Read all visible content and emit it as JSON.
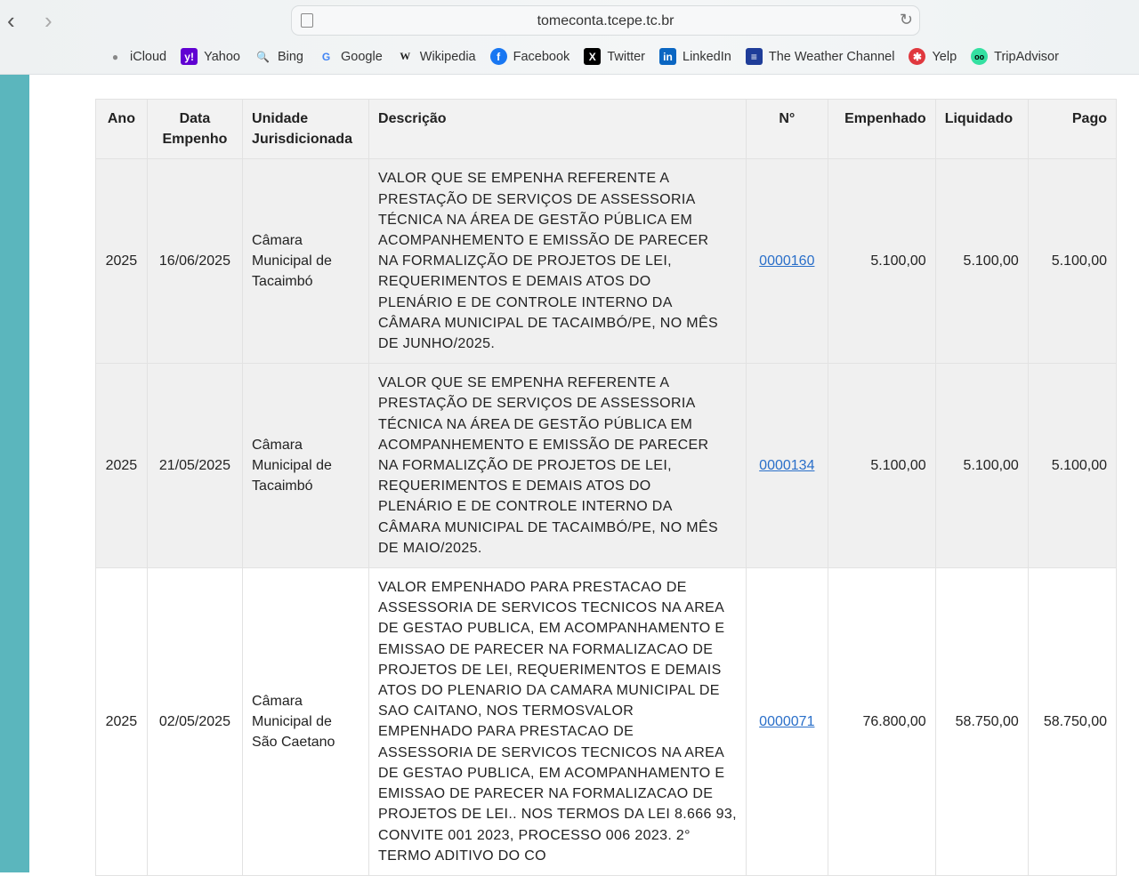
{
  "browser": {
    "url": "tomeconta.tcepe.tc.br",
    "bookmarks": [
      {
        "label": "iCloud",
        "icon": "apple-icon"
      },
      {
        "label": "Yahoo",
        "icon": "yahoo-icon"
      },
      {
        "label": "Bing",
        "icon": "bing-search-icon"
      },
      {
        "label": "Google",
        "icon": "google-icon"
      },
      {
        "label": "Wikipedia",
        "icon": "wikipedia-icon"
      },
      {
        "label": "Facebook",
        "icon": "facebook-icon"
      },
      {
        "label": "Twitter",
        "icon": "x-icon"
      },
      {
        "label": "LinkedIn",
        "icon": "linkedin-icon"
      },
      {
        "label": "The Weather Channel",
        "icon": "weather-channel-icon"
      },
      {
        "label": "Yelp",
        "icon": "yelp-icon"
      },
      {
        "label": "TripAdvisor",
        "icon": "tripadvisor-icon"
      }
    ]
  },
  "table": {
    "headers": {
      "ano": "Ano",
      "data": "Data Empenho",
      "unidade": "Unidade Jurisdicionada",
      "descricao": "Descrição",
      "numero": "N°",
      "empenhado": "Empenhado",
      "liquidado": "Liquidado",
      "pago": "Pago"
    },
    "rows": [
      {
        "ano": "2025",
        "data": "16/06/2025",
        "unidade": "Câmara Municipal de Tacaimbó",
        "descricao": [
          "VALOR QUE SE EMPENHA REFERENTE A",
          "PRESTAÇÃO DE SERVIÇOS DE ASSESSORIA",
          "TÉCNICA NA ÁREA DE GESTÃO PÚBLICA EM",
          "ACOMPANHEMENTO E EMISSÃO DE PARECER",
          "NA FORMALIZÇÃO DE PROJETOS DE LEI,",
          "REQUERIMENTOS E DEMAIS ATOS DO",
          "PLENÁRIO E DE CONTROLE INTERNO DA",
          "CÂMARA MUNICIPAL DE TACAIMBÓ/PE, NO MÊS",
          "DE JUNHO/2025."
        ],
        "numero": "0000160",
        "empenhado": "5.100,00",
        "liquidado": "5.100,00",
        "pago": "5.100,00"
      },
      {
        "ano": "2025",
        "data": "21/05/2025",
        "unidade": "Câmara Municipal de Tacaimbó",
        "descricao": [
          "VALOR QUE SE EMPENHA REFERENTE A",
          "PRESTAÇÃO DE SERVIÇOS DE ASSESSORIA",
          "TÉCNICA NA ÁREA DE GESTÃO PÚBLICA EM",
          "ACOMPANHEMENTO E EMISSÃO DE PARECER",
          "NA FORMALIZÇÃO DE PROJETOS DE LEI,",
          "REQUERIMENTOS E DEMAIS ATOS DO",
          "PLENÁRIO E DE CONTROLE INTERNO DA",
          "CÂMARA MUNICIPAL DE TACAIMBÓ/PE, NO MÊS",
          "DE MAIO/2025."
        ],
        "numero": "0000134",
        "empenhado": "5.100,00",
        "liquidado": "5.100,00",
        "pago": "5.100,00"
      },
      {
        "ano": "2025",
        "data": "02/05/2025",
        "unidade": "Câmara Municipal de São Caetano",
        "descricao": [
          "VALOR EMPENHADO PARA PRESTACAO DE",
          "ASSESSORIA DE SERVICOS TECNICOS NA AREA",
          "DE GESTAO PUBLICA, EM ACOMPANHAMENTO E",
          "EMISSAO DE PARECER NA FORMALIZACAO DE",
          "PROJETOS DE LEI, REQUERIMENTOS E DEMAIS",
          "ATOS DO PLENARIO DA CAMARA MUNICIPAL DE",
          "SAO CAITANO, NOS TERMOSVALOR",
          "EMPENHADO PARA PRESTACAO DE",
          "ASSESSORIA DE SERVICOS TECNICOS NA AREA",
          "DE GESTAO PUBLICA, EM ACOMPANHAMENTO E",
          "EMISSAO DE PARECER NA FORMALIZACAO DE",
          "PROJETOS DE LEI.. NOS TERMOS DA LEI 8.666 93,",
          "CONVITE 001 2023, PROCESSO 006 2023. 2°",
          "TERMO ADITIVO DO CO"
        ],
        "numero": "0000071",
        "empenhado": "76.800,00",
        "liquidado": "58.750,00",
        "pago": "58.750,00"
      }
    ]
  }
}
